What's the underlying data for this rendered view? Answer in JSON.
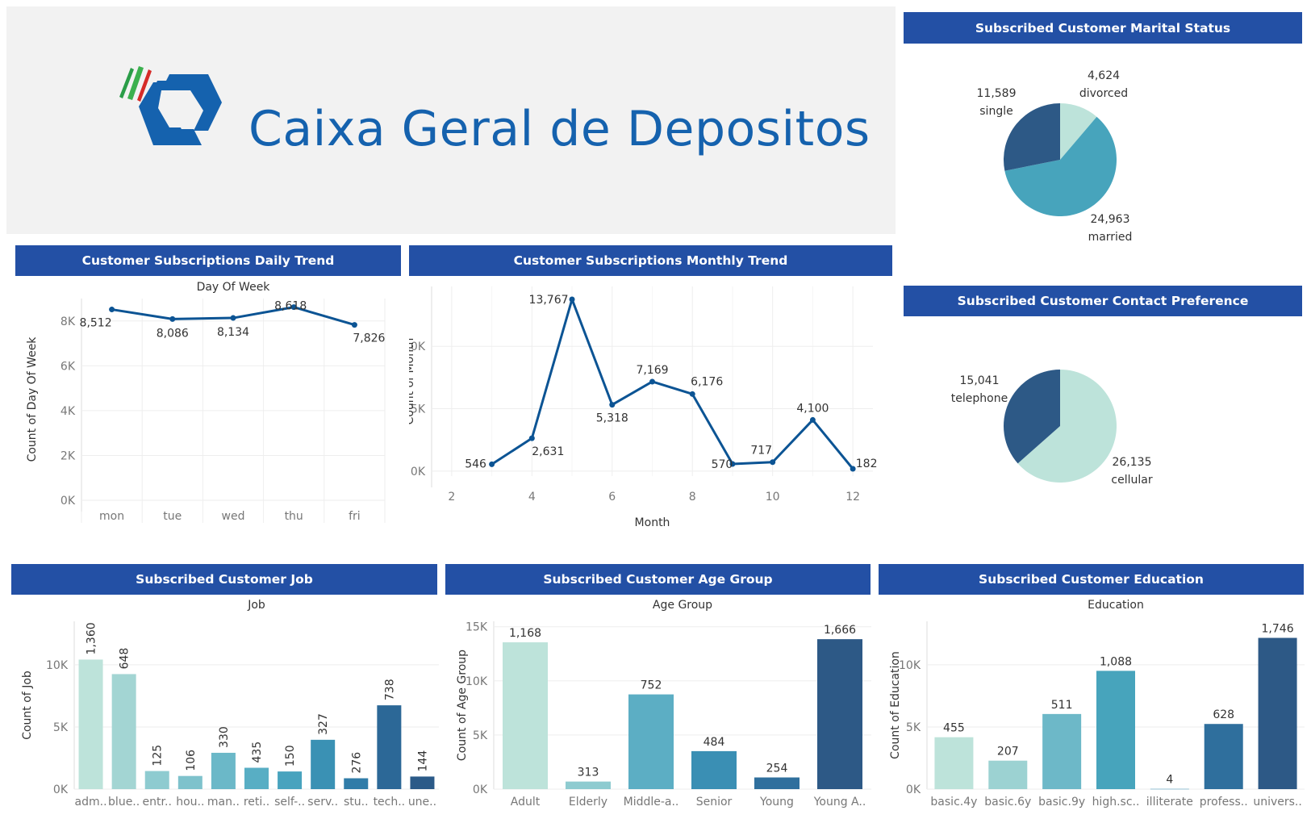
{
  "logo": {
    "brand": "Caixa Geral de Depositos"
  },
  "colors": {
    "header_bg": "#2350a5",
    "line": "#0c5494",
    "brand_blue": "#1562ae"
  },
  "headers": {
    "marital": "Subscribed Customer Marital Status",
    "daily": "Customer Subscriptions Daily Trend",
    "monthly": "Customer Subscriptions Monthly Trend",
    "contact": "Subscribed Customer Contact Preference",
    "job": "Subscribed Customer Job",
    "age": "Subscribed Customer Age Group",
    "education": "Subscribed Customer Education"
  },
  "chart_data": [
    {
      "id": "marital",
      "type": "pie",
      "labels": [
        "divorced",
        "married",
        "single"
      ],
      "values": [
        4624,
        24963,
        11589
      ],
      "value_labels": [
        "4,624",
        "24,963",
        "11,589"
      ],
      "colors": [
        "#bde3da",
        "#47a4bc",
        "#2d5986"
      ]
    },
    {
      "id": "daily",
      "type": "line",
      "title": "Day Of Week",
      "xlabel": "",
      "ylabel": "Count of Day Of Week",
      "categories": [
        "mon",
        "tue",
        "wed",
        "thu",
        "fri"
      ],
      "values": [
        8512,
        8086,
        8134,
        8618,
        7826
      ],
      "value_labels": [
        "8,512",
        "8,086",
        "8,134",
        "8,618",
        "7,826"
      ],
      "ylim": [
        0,
        9000
      ],
      "yticks": [
        0,
        2000,
        4000,
        6000,
        8000
      ],
      "ytick_labels": [
        "0K",
        "2K",
        "4K",
        "6K",
        "8K"
      ]
    },
    {
      "id": "monthly",
      "type": "line",
      "xlabel": "Month",
      "ylabel": "Count of Month",
      "x": [
        3,
        4,
        5,
        6,
        7,
        8,
        9,
        10,
        11,
        12
      ],
      "values": [
        546,
        2631,
        13767,
        5318,
        7169,
        6176,
        570,
        717,
        4100,
        182
      ],
      "value_labels": [
        "546",
        "2,631",
        "13,767",
        "5,318",
        "7,169",
        "6,176",
        "570",
        "717",
        "4,100",
        "182"
      ],
      "xlim": [
        1.5,
        12.5
      ],
      "ylim": [
        -400,
        14800
      ],
      "xticks": [
        2,
        4,
        6,
        8,
        10,
        12
      ],
      "yticks": [
        0,
        5000,
        10000
      ],
      "ytick_labels": [
        "0K",
        "5K",
        "10K"
      ]
    },
    {
      "id": "contact",
      "type": "pie",
      "labels": [
        "cellular",
        "telephone"
      ],
      "values": [
        26135,
        15041
      ],
      "value_labels": [
        "26,135",
        "15,041"
      ],
      "colors": [
        "#bde3da",
        "#2d5986"
      ]
    },
    {
      "id": "job",
      "type": "bar",
      "title": "Job",
      "xlabel": "",
      "ylabel": "Count of Job",
      "categories": [
        "adm..",
        "blue..",
        "entr..",
        "hou..",
        "man..",
        "reti..",
        "self-..",
        "serv..",
        "stu..",
        "tech..",
        "une.."
      ],
      "values": [
        10422,
        9254,
        1456,
        1060,
        2924,
        1720,
        1421,
        3969,
        875,
        6743,
        1014
      ],
      "value_labels": [
        "1,360",
        "648",
        "125",
        "106",
        "330",
        "435",
        "150",
        "327",
        "276",
        "738",
        "144"
      ],
      "colors": [
        "#bde3da",
        "#a3d5d3",
        "#8ecbd0",
        "#7ec2cc",
        "#6bb8c8",
        "#58aec4",
        "#48a3be",
        "#3a91b4",
        "#307ca8",
        "#2c6897",
        "#2b5a88"
      ],
      "ylim": [
        0,
        13500
      ],
      "yticks": [
        0,
        5000,
        10000
      ],
      "ytick_labels": [
        "0K",
        "5K",
        "10K"
      ]
    },
    {
      "id": "age",
      "type": "bar",
      "title": "Age Group",
      "xlabel": "",
      "ylabel": "Count of Age Group",
      "categories": [
        "Adult",
        "Elderly",
        "Middle-a..",
        "Senior",
        "Young",
        "Young A.."
      ],
      "values": [
        13560,
        700,
        8750,
        3510,
        1080,
        13850
      ],
      "value_labels": [
        "1,168",
        "313",
        "752",
        "484",
        "254",
        "1,666"
      ],
      "colors": [
        "#bde3da",
        "#8ecbd0",
        "#5caec4",
        "#3a8fb4",
        "#2f6f9d",
        "#2d5986"
      ],
      "ylim": [
        0,
        15500
      ],
      "yticks": [
        0,
        5000,
        10000,
        15000
      ],
      "ytick_labels": [
        "0K",
        "5K",
        "10K",
        "15K"
      ]
    },
    {
      "id": "education",
      "type": "bar",
      "title": "Education",
      "xlabel": "",
      "ylabel": "Count of Education",
      "categories": [
        "basic.4y",
        "basic.6y",
        "basic.9y",
        "high.sc..",
        "illiterate",
        "profess..",
        "univers.."
      ],
      "values": [
        4176,
        2292,
        6045,
        9515,
        18,
        5243,
        12168
      ],
      "value_labels": [
        "455",
        "207",
        "511",
        "1,088",
        "4",
        "628",
        "1,746"
      ],
      "colors": [
        "#bde3da",
        "#9cd2d2",
        "#6db8c8",
        "#47a4bc",
        "#3a91b4",
        "#2f6f9d",
        "#2d5986"
      ],
      "ylim": [
        0,
        13500
      ],
      "yticks": [
        0,
        5000,
        10000
      ],
      "ytick_labels": [
        "0K",
        "5K",
        "10K"
      ]
    }
  ]
}
